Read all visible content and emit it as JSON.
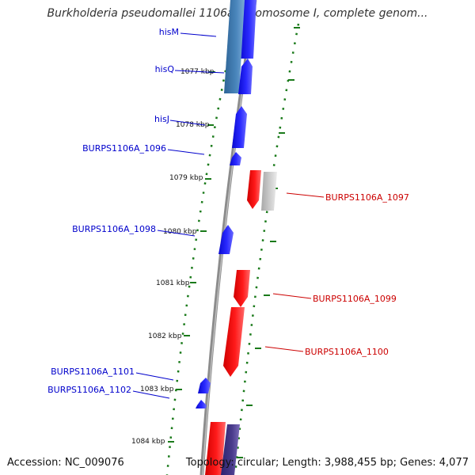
{
  "title": "Burkholderia pseudomallei 1106a chromosome I, complete genom...",
  "accession": "Accession: NC_009076",
  "topology": "Topology: circular; Length: 3,988,455 bp; Genes: 4,077",
  "colors": {
    "forward_gene": "#1a1aff",
    "forward_gene_dark": "#0000b0",
    "reverse_gene": "#ff0000",
    "reverse_gene_dark": "#b00000",
    "rna_gene": "#4a7cb0",
    "pseudo_gene": "#c8c8c8",
    "operon_gene": "#4a3c8c",
    "backbone": "#8c8c8c",
    "tick": "#1a7a1a",
    "forward_label": "#0000cc",
    "reverse_label": "#cc0000"
  },
  "ruler": [
    {
      "label": "1077 kbp"
    },
    {
      "label": "1078 kbp"
    },
    {
      "label": "1079 kbp"
    },
    {
      "label": "1080 kbp"
    },
    {
      "label": "1081 kbp"
    },
    {
      "label": "1082 kbp"
    },
    {
      "label": "1083 kbp"
    },
    {
      "label": "1084 kbp"
    }
  ],
  "gene_labels": [
    {
      "name": "hisM",
      "strand": "forward"
    },
    {
      "name": "hisQ",
      "strand": "forward"
    },
    {
      "name": "hisJ",
      "strand": "forward"
    },
    {
      "name": "BURPS1106A_1096",
      "strand": "forward"
    },
    {
      "name": "BURPS1106A_1097",
      "strand": "reverse"
    },
    {
      "name": "BURPS1106A_1098",
      "strand": "forward"
    },
    {
      "name": "BURPS1106A_1099",
      "strand": "reverse"
    },
    {
      "name": "BURPS1106A_1100",
      "strand": "reverse"
    },
    {
      "name": "BURPS1106A_1101",
      "strand": "forward"
    },
    {
      "name": "BURPS1106A_1102",
      "strand": "forward"
    }
  ]
}
